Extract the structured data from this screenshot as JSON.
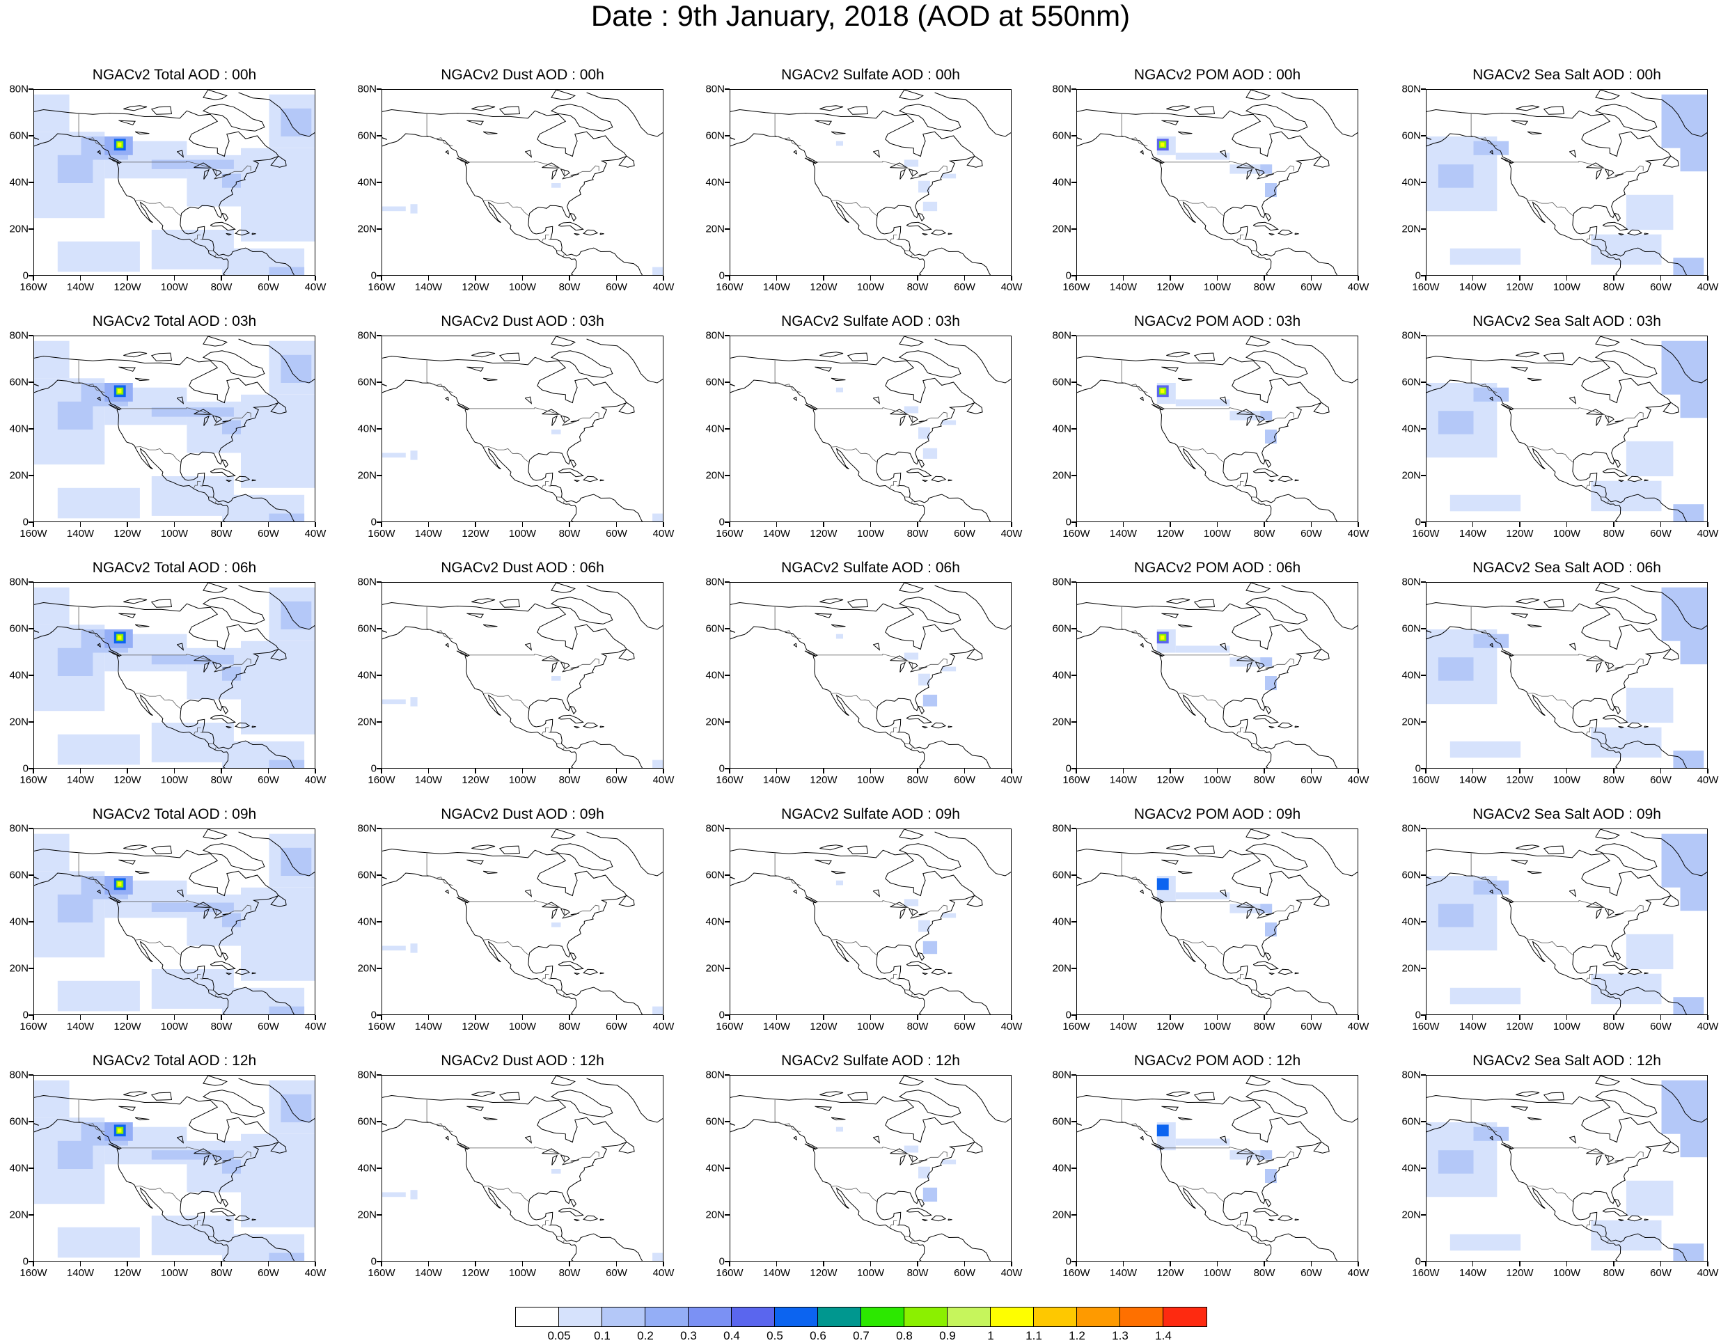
{
  "title": "Date : 9th January, 2018 (AOD at 550nm)",
  "x_ticks": [
    "160W",
    "140W",
    "120W",
    "100W",
    "80W",
    "60W",
    "40W"
  ],
  "y_ticks": [
    "80N",
    "60N",
    "40N",
    "20N",
    "0"
  ],
  "colorbar": {
    "colors": [
      "#ffffff",
      "#d6e2fc",
      "#b4c8f8",
      "#94aef6",
      "#7b91f4",
      "#5a66ee",
      "#0c64f0",
      "#00978f",
      "#2ce800",
      "#8bf000",
      "#c6f55c",
      "#fefe00",
      "#fec800",
      "#fe9a00",
      "#fe7000",
      "#fe2a10"
    ],
    "labels": [
      "0.05",
      "0.1",
      "0.2",
      "0.3",
      "0.4",
      "0.5",
      "0.6",
      "0.7",
      "0.8",
      "0.9",
      "1",
      "1.1",
      "1.2",
      "1.3",
      "1.4"
    ]
  },
  "panels": [
    [
      {
        "title": "NGACv2 Total AOD : 00h",
        "species": "total",
        "hour": 0
      },
      {
        "title": "NGACv2 Dust AOD : 00h",
        "species": "dust",
        "hour": 0
      },
      {
        "title": "NGACv2 Sulfate AOD : 00h",
        "species": "sulfate",
        "hour": 0
      },
      {
        "title": "NGACv2 POM AOD : 00h",
        "species": "pom",
        "hour": 0
      },
      {
        "title": "NGACv2 Sea Salt AOD : 00h",
        "species": "seasalt",
        "hour": 0
      }
    ],
    [
      {
        "title": "NGACv2 Total AOD : 03h",
        "species": "total",
        "hour": 3
      },
      {
        "title": "NGACv2 Dust AOD : 03h",
        "species": "dust",
        "hour": 3
      },
      {
        "title": "NGACv2 Sulfate AOD : 03h",
        "species": "sulfate",
        "hour": 3
      },
      {
        "title": "NGACv2 POM AOD : 03h",
        "species": "pom",
        "hour": 3
      },
      {
        "title": "NGACv2 Sea Salt AOD : 03h",
        "species": "seasalt",
        "hour": 3
      }
    ],
    [
      {
        "title": "NGACv2 Total AOD : 06h",
        "species": "total",
        "hour": 6
      },
      {
        "title": "NGACv2 Dust AOD : 06h",
        "species": "dust",
        "hour": 6
      },
      {
        "title": "NGACv2 Sulfate AOD : 06h",
        "species": "sulfate",
        "hour": 6
      },
      {
        "title": "NGACv2 POM AOD : 06h",
        "species": "pom",
        "hour": 6
      },
      {
        "title": "NGACv2 Sea Salt AOD : 06h",
        "species": "seasalt",
        "hour": 6
      }
    ],
    [
      {
        "title": "NGACv2 Total AOD : 09h",
        "species": "total",
        "hour": 9
      },
      {
        "title": "NGACv2 Dust AOD : 09h",
        "species": "dust",
        "hour": 9
      },
      {
        "title": "NGACv2 Sulfate AOD : 09h",
        "species": "sulfate",
        "hour": 9
      },
      {
        "title": "NGACv2 POM AOD : 09h",
        "species": "pom",
        "hour": 9
      },
      {
        "title": "NGACv2 Sea Salt  AOD : 09h",
        "species": "seasalt",
        "hour": 9
      }
    ],
    [
      {
        "title": "NGACv2 Total AOD  : 12h",
        "species": "total",
        "hour": 12
      },
      {
        "title": "NGACv2 Dust AOD : 12h",
        "species": "dust",
        "hour": 12
      },
      {
        "title": "NGACv2 Sulfate AOD : 12h",
        "species": "sulfate",
        "hour": 12
      },
      {
        "title": "NGACv2 POM  AOD : 12h",
        "species": "pom",
        "hour": 12
      },
      {
        "title": "NGACv2 Sea Salt  AOD : 12h",
        "species": "seasalt",
        "hour": 12
      }
    ]
  ]
}
